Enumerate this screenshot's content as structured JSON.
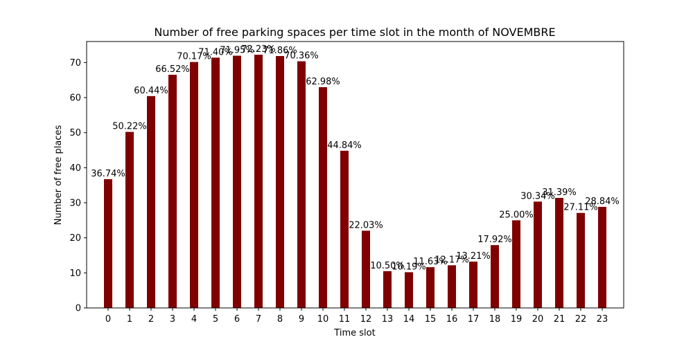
{
  "chart_data": {
    "type": "bar",
    "title": "Number of free parking spaces per time slot in the month of NOVEMBRE",
    "xlabel": "Time slot",
    "ylabel": "Number of free places",
    "ylim": [
      0,
      76
    ],
    "yticks": [
      0,
      10,
      20,
      30,
      40,
      50,
      60,
      70
    ],
    "grid": false,
    "bar_color": "#800000",
    "categories": [
      "0",
      "1",
      "2",
      "3",
      "4",
      "5",
      "6",
      "7",
      "8",
      "9",
      "10",
      "11",
      "12",
      "13",
      "14",
      "15",
      "16",
      "17",
      "18",
      "19",
      "20",
      "21",
      "22",
      "23"
    ],
    "values": [
      36.74,
      50.22,
      60.44,
      66.52,
      70.17,
      71.4,
      71.95,
      72.23,
      71.86,
      70.36,
      62.98,
      44.84,
      22.03,
      10.5,
      10.19,
      11.63,
      12.17,
      13.21,
      17.92,
      25.0,
      30.34,
      31.39,
      27.11,
      28.84
    ],
    "data_labels": [
      "36.74%",
      "50.22%",
      "60.44%",
      "66.52%",
      "70.17%",
      "71.40%",
      "71.95%",
      "72.23%",
      "71.86%",
      "70.36%",
      "62.98%",
      "44.84%",
      "22.03%",
      "10.50%",
      "10.19%",
      "11.63%",
      "12.17%",
      "13.21%",
      "17.92%",
      "25.00%",
      "30.34%",
      "31.39%",
      "27.11%",
      "28.84%"
    ]
  }
}
